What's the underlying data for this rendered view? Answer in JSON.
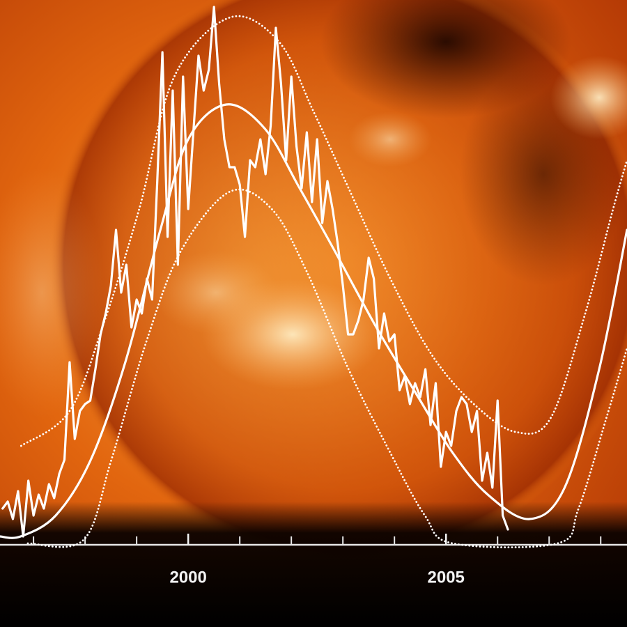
{
  "chart_data": {
    "type": "line",
    "xlim": [
      1996.35,
      2008.51
    ],
    "ylim": [
      0,
      156
    ],
    "xticks": [
      2000,
      2005
    ],
    "minor_xticks": [
      1997,
      1998,
      1999,
      2000,
      2001,
      2002,
      2003,
      2004,
      2005,
      2006,
      2007,
      2008
    ],
    "series": [
      {
        "color": "#ffffff",
        "dashed": false,
        "smooth": false,
        "x": [
          1996.4,
          1996.5,
          1996.6,
          1996.7,
          1996.8,
          1996.9,
          1997.0,
          1997.1,
          1997.2,
          1997.3,
          1997.4,
          1997.5,
          1997.6,
          1997.7,
          1997.8,
          1997.9,
          1998.0,
          1998.1,
          1998.2,
          1998.3,
          1998.4,
          1998.5,
          1998.6,
          1998.7,
          1998.8,
          1998.9,
          1999.0,
          1999.1,
          1999.2,
          1999.3,
          1999.4,
          1999.5,
          1999.6,
          1999.7,
          1999.8,
          1999.9,
          2000.0,
          2000.1,
          2000.2,
          2000.3,
          2000.4,
          2000.5,
          2000.6,
          2000.7,
          2000.8,
          2000.9,
          2001.0,
          2001.1,
          2001.2,
          2001.3,
          2001.4,
          2001.5,
          2001.6,
          2001.7,
          2001.8,
          2001.9,
          2002.0,
          2002.1,
          2002.2,
          2002.3,
          2002.4,
          2002.5,
          2002.6,
          2002.7,
          2002.8,
          2002.9,
          2003.0,
          2003.1,
          2003.2,
          2003.3,
          2003.4,
          2003.5,
          2003.6,
          2003.7,
          2003.8,
          2003.9,
          2004.0,
          2004.1,
          2004.2,
          2004.3,
          2004.4,
          2004.5,
          2004.6,
          2004.7,
          2004.8,
          2004.9,
          2005.0,
          2005.1,
          2005.2,
          2005.3,
          2005.4,
          2005.5,
          2005.6,
          2005.7,
          2005.8,
          2005.9,
          2006.0,
          2006.1,
          2006.2
        ],
        "values": [
          10,
          12,
          7,
          15,
          2,
          18,
          8,
          14,
          10,
          17,
          13,
          20,
          24,
          52,
          30,
          38,
          40,
          41,
          50,
          60,
          66,
          74,
          90,
          72,
          80,
          62,
          70,
          66,
          76,
          70,
          104,
          141,
          88,
          130,
          80,
          134,
          96,
          118,
          140,
          130,
          136,
          154,
          132,
          116,
          108,
          108,
          103,
          88,
          110,
          108,
          116,
          106,
          120,
          148,
          132,
          110,
          134,
          114,
          102,
          118,
          98,
          116,
          92,
          104,
          96,
          86,
          74,
          60,
          60,
          64,
          70,
          82,
          76,
          56,
          66,
          58,
          60,
          44,
          48,
          40,
          46,
          42,
          50,
          34,
          46,
          22,
          32,
          28,
          38,
          42,
          40,
          32,
          38,
          18,
          26,
          16,
          41,
          8,
          4
        ]
      },
      {
        "color": "#ffffff",
        "dashed": false,
        "smooth": true,
        "x": [
          1996.35,
          1996.75,
          1997.43,
          1998.11,
          1998.78,
          1999.46,
          2000.0,
          2000.74,
          2001.49,
          2002.16,
          2002.84,
          2003.65,
          2004.46,
          2005.13,
          2005.81,
          2006.62,
          2007.3,
          2007.97,
          2008.51
        ],
        "values": [
          2,
          2,
          8,
          24,
          52,
          90,
          116,
          126,
          119,
          102,
          84,
          62,
          42,
          26,
          14,
          7,
          16,
          50,
          90
        ]
      },
      {
        "color": "#ffffff",
        "dashed": true,
        "smooth": true,
        "x": [
          1996.76,
          1997.7,
          1998.38,
          1999.05,
          1999.73,
          2000.81,
          2001.76,
          2002.43,
          2003.11,
          2003.92,
          2004.73,
          2005.54,
          2006.35,
          2007.03,
          2007.7,
          2008.24,
          2008.51
        ],
        "values": [
          28,
          38,
          64,
          96,
          134,
          151,
          144,
          124,
          102,
          76,
          54,
          40,
          32,
          36,
          66,
          96,
          110
        ]
      },
      {
        "color": "#ffffff",
        "dashed": true,
        "smooth": true,
        "x": [
          1996.89,
          1997.97,
          1998.51,
          1999.19,
          1999.86,
          2000.81,
          2001.62,
          2002.3,
          2003.11,
          2003.92,
          2004.59,
          2005.13,
          2007.16,
          2007.57,
          2008.11,
          2008.51
        ],
        "values": [
          0,
          1,
          24,
          58,
          84,
          101,
          96,
          78,
          50,
          26,
          8,
          0,
          0,
          10,
          36,
          56
        ]
      }
    ]
  }
}
